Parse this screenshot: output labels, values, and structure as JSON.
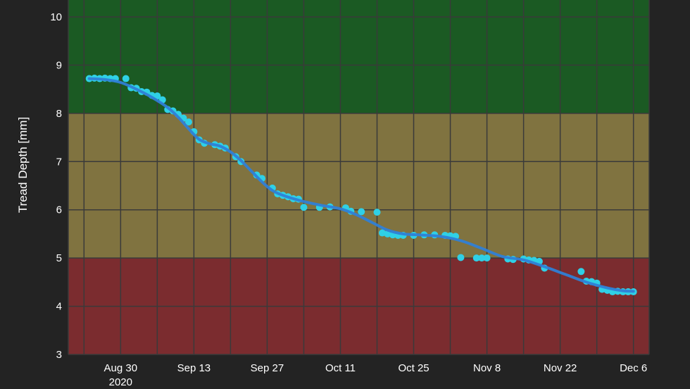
{
  "chart_data": {
    "type": "scatter",
    "title": "",
    "xlabel": "",
    "ylabel": "Tread Depth [mm]",
    "x_range": [
      "2020-08-20",
      "2020-12-09"
    ],
    "ylim": [
      3,
      10.35
    ],
    "grid": true,
    "y_ticks": [
      3,
      4,
      5,
      6,
      7,
      8,
      9,
      10
    ],
    "x_ticks": [
      {
        "date": "2020-08-30",
        "label": "Aug 30",
        "sublabel": "2020"
      },
      {
        "date": "2020-09-13",
        "label": "Sep 13",
        "sublabel": ""
      },
      {
        "date": "2020-09-27",
        "label": "Sep 27",
        "sublabel": ""
      },
      {
        "date": "2020-10-11",
        "label": "Oct 11",
        "sublabel": ""
      },
      {
        "date": "2020-10-25",
        "label": "Oct 25",
        "sublabel": ""
      },
      {
        "date": "2020-11-08",
        "label": "Nov 8",
        "sublabel": ""
      },
      {
        "date": "2020-11-22",
        "label": "Nov 22",
        "sublabel": ""
      },
      {
        "date": "2020-12-06",
        "label": "Dec 6",
        "sublabel": ""
      }
    ],
    "bands": [
      {
        "from": 8,
        "to": 10.35,
        "color": "#1b5a23"
      },
      {
        "from": 5,
        "to": 8,
        "color": "#807340"
      },
      {
        "from": 3,
        "to": 5,
        "color": "#7b2c2f"
      }
    ],
    "colors": {
      "points": "#2fd0e6",
      "trend": "#2f7fd6",
      "grid": "#3a3a3a",
      "background": "#232323"
    },
    "series": [
      {
        "type": "scatter",
        "points": [
          {
            "x": "2020-08-24",
            "y": 8.72
          },
          {
            "x": "2020-08-25",
            "y": 8.73
          },
          {
            "x": "2020-08-26",
            "y": 8.72
          },
          {
            "x": "2020-08-27",
            "y": 8.73
          },
          {
            "x": "2020-08-28",
            "y": 8.72
          },
          {
            "x": "2020-08-29",
            "y": 8.72
          },
          {
            "x": "2020-08-31",
            "y": 8.72
          },
          {
            "x": "2020-09-01",
            "y": 8.53
          },
          {
            "x": "2020-09-02",
            "y": 8.52
          },
          {
            "x": "2020-09-03",
            "y": 8.45
          },
          {
            "x": "2020-09-04",
            "y": 8.44
          },
          {
            "x": "2020-09-05",
            "y": 8.37
          },
          {
            "x": "2020-09-06",
            "y": 8.36
          },
          {
            "x": "2020-09-07",
            "y": 8.28
          },
          {
            "x": "2020-09-08",
            "y": 8.08
          },
          {
            "x": "2020-09-09",
            "y": 8.05
          },
          {
            "x": "2020-09-10",
            "y": 7.98
          },
          {
            "x": "2020-09-11",
            "y": 7.9
          },
          {
            "x": "2020-09-12",
            "y": 7.82
          },
          {
            "x": "2020-09-13",
            "y": 7.62
          },
          {
            "x": "2020-09-14",
            "y": 7.45
          },
          {
            "x": "2020-09-15",
            "y": 7.38
          },
          {
            "x": "2020-09-17",
            "y": 7.35
          },
          {
            "x": "2020-09-18",
            "y": 7.32
          },
          {
            "x": "2020-09-19",
            "y": 7.28
          },
          {
            "x": "2020-09-21",
            "y": 7.1
          },
          {
            "x": "2020-09-22",
            "y": 7.0
          },
          {
            "x": "2020-09-25",
            "y": 6.72
          },
          {
            "x": "2020-09-26",
            "y": 6.65
          },
          {
            "x": "2020-09-28",
            "y": 6.45
          },
          {
            "x": "2020-09-29",
            "y": 6.33
          },
          {
            "x": "2020-09-30",
            "y": 6.3
          },
          {
            "x": "2020-10-01",
            "y": 6.27
          },
          {
            "x": "2020-10-02",
            "y": 6.23
          },
          {
            "x": "2020-10-03",
            "y": 6.22
          },
          {
            "x": "2020-10-04",
            "y": 6.05
          },
          {
            "x": "2020-10-07",
            "y": 6.05
          },
          {
            "x": "2020-10-09",
            "y": 6.06
          },
          {
            "x": "2020-10-12",
            "y": 6.04
          },
          {
            "x": "2020-10-13",
            "y": 5.97
          },
          {
            "x": "2020-10-15",
            "y": 5.96
          },
          {
            "x": "2020-10-18",
            "y": 5.95
          },
          {
            "x": "2020-10-19",
            "y": 5.52
          },
          {
            "x": "2020-10-20",
            "y": 5.5
          },
          {
            "x": "2020-10-21",
            "y": 5.48
          },
          {
            "x": "2020-10-22",
            "y": 5.47
          },
          {
            "x": "2020-10-23",
            "y": 5.47
          },
          {
            "x": "2020-10-25",
            "y": 5.47
          },
          {
            "x": "2020-10-27",
            "y": 5.48
          },
          {
            "x": "2020-10-29",
            "y": 5.48
          },
          {
            "x": "2020-10-31",
            "y": 5.47
          },
          {
            "x": "2020-11-01",
            "y": 5.46
          },
          {
            "x": "2020-11-02",
            "y": 5.45
          },
          {
            "x": "2020-11-03",
            "y": 5.01
          },
          {
            "x": "2020-11-06",
            "y": 5.0
          },
          {
            "x": "2020-11-07",
            "y": 5.0
          },
          {
            "x": "2020-11-08",
            "y": 5.0
          },
          {
            "x": "2020-11-12",
            "y": 4.98
          },
          {
            "x": "2020-11-13",
            "y": 4.97
          },
          {
            "x": "2020-11-15",
            "y": 4.98
          },
          {
            "x": "2020-11-16",
            "y": 4.96
          },
          {
            "x": "2020-11-17",
            "y": 4.95
          },
          {
            "x": "2020-11-18",
            "y": 4.93
          },
          {
            "x": "2020-11-19",
            "y": 4.79
          },
          {
            "x": "2020-11-26",
            "y": 4.72
          },
          {
            "x": "2020-11-27",
            "y": 4.52
          },
          {
            "x": "2020-11-28",
            "y": 4.51
          },
          {
            "x": "2020-11-29",
            "y": 4.48
          },
          {
            "x": "2020-11-30",
            "y": 4.35
          },
          {
            "x": "2020-12-01",
            "y": 4.33
          },
          {
            "x": "2020-12-02",
            "y": 4.3
          },
          {
            "x": "2020-12-03",
            "y": 4.31
          },
          {
            "x": "2020-12-04",
            "y": 4.3
          },
          {
            "x": "2020-12-05",
            "y": 4.3
          },
          {
            "x": "2020-12-06",
            "y": 4.3
          }
        ]
      },
      {
        "type": "line",
        "points": [
          {
            "x": "2020-08-24",
            "y": 8.72
          },
          {
            "x": "2020-08-27",
            "y": 8.7
          },
          {
            "x": "2020-08-30",
            "y": 8.64
          },
          {
            "x": "2020-09-02",
            "y": 8.5
          },
          {
            "x": "2020-09-05",
            "y": 8.33
          },
          {
            "x": "2020-09-08",
            "y": 8.12
          },
          {
            "x": "2020-09-10",
            "y": 7.92
          },
          {
            "x": "2020-09-12",
            "y": 7.68
          },
          {
            "x": "2020-09-14",
            "y": 7.46
          },
          {
            "x": "2020-09-16",
            "y": 7.37
          },
          {
            "x": "2020-09-18",
            "y": 7.32
          },
          {
            "x": "2020-09-20",
            "y": 7.2
          },
          {
            "x": "2020-09-22",
            "y": 7.02
          },
          {
            "x": "2020-09-24",
            "y": 6.8
          },
          {
            "x": "2020-09-26",
            "y": 6.58
          },
          {
            "x": "2020-09-28",
            "y": 6.4
          },
          {
            "x": "2020-09-30",
            "y": 6.3
          },
          {
            "x": "2020-10-03",
            "y": 6.2
          },
          {
            "x": "2020-10-07",
            "y": 6.1
          },
          {
            "x": "2020-10-11",
            "y": 6.02
          },
          {
            "x": "2020-10-14",
            "y": 5.9
          },
          {
            "x": "2020-10-17",
            "y": 5.74
          },
          {
            "x": "2020-10-20",
            "y": 5.58
          },
          {
            "x": "2020-10-23",
            "y": 5.5
          },
          {
            "x": "2020-10-26",
            "y": 5.48
          },
          {
            "x": "2020-10-30",
            "y": 5.45
          },
          {
            "x": "2020-11-03",
            "y": 5.36
          },
          {
            "x": "2020-11-07",
            "y": 5.2
          },
          {
            "x": "2020-11-11",
            "y": 5.03
          },
          {
            "x": "2020-11-15",
            "y": 4.96
          },
          {
            "x": "2020-11-19",
            "y": 4.82
          },
          {
            "x": "2020-11-23",
            "y": 4.66
          },
          {
            "x": "2020-11-27",
            "y": 4.5
          },
          {
            "x": "2020-12-01",
            "y": 4.38
          },
          {
            "x": "2020-12-04",
            "y": 4.32
          },
          {
            "x": "2020-12-06",
            "y": 4.31
          }
        ]
      }
    ]
  }
}
